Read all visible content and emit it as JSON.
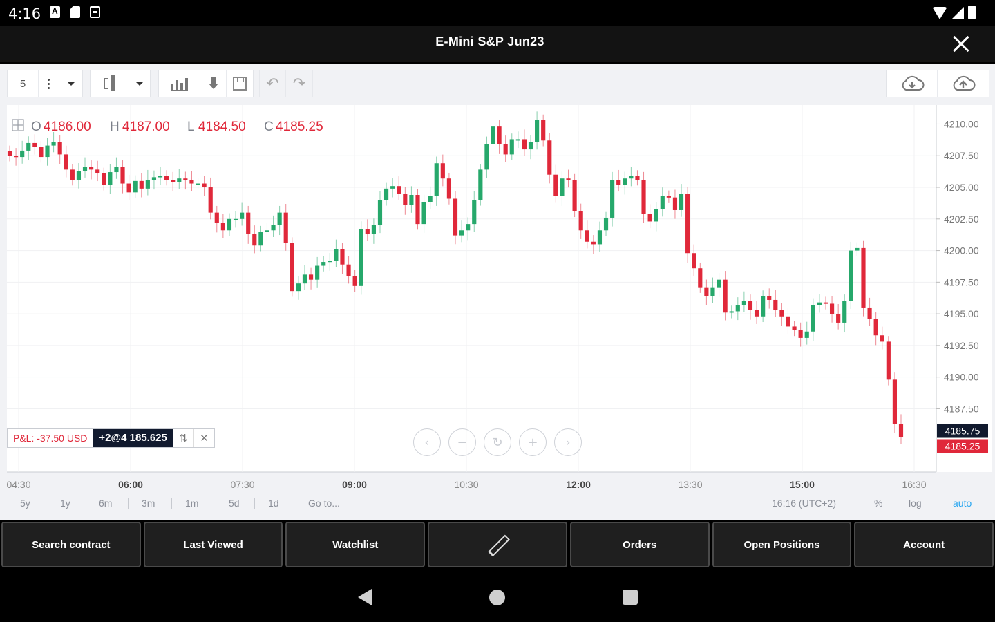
{
  "status_bar": {
    "time": "4:16"
  },
  "header": {
    "title": "E-Mini S&P Jun23"
  },
  "toolbar": {
    "interval": "5"
  },
  "ohlc": {
    "open_label": "O",
    "open": "4186.00",
    "high_label": "H",
    "high": "4187.00",
    "low_label": "L",
    "low": "4184.50",
    "close_label": "C",
    "close": "4185.25"
  },
  "position": {
    "pnl": "P&L: -37.50 USD",
    "qty": "+2@4 185.625"
  },
  "range_bar": {
    "items": [
      "5y",
      "1y",
      "6m",
      "3m",
      "1m",
      "5d",
      "1d",
      "Go to..."
    ],
    "timezone": "16:16 (UTC+2)",
    "percent": "%",
    "log": "log",
    "auto": "auto"
  },
  "bottom_nav": {
    "search": "Search contract",
    "last_viewed": "Last Viewed",
    "watchlist": "Watchlist",
    "orders": "Orders",
    "open_positions": "Open Positions",
    "account": "Account"
  },
  "colors": {
    "up": "#26a86b",
    "down": "#e0283a",
    "accent": "#2aa7f0"
  },
  "chart_data": {
    "type": "candlestick",
    "x_labels": [
      "04:30",
      "06:00",
      "07:30",
      "09:00",
      "10:30",
      "12:00",
      "13:30",
      "15:00",
      "16:30"
    ],
    "y_ticks": [
      "4210.00",
      "4207.50",
      "4205.00",
      "4202.50",
      "4200.00",
      "4197.50",
      "4195.00",
      "4192.50",
      "4190.00",
      "4187.50"
    ],
    "ylim": [
      4182.5,
      4211.5
    ],
    "position_price": "4185.75",
    "last_price": "4185.25",
    "grid": true,
    "closes": [
      4207.5,
      4207.4,
      4207.9,
      4208.5,
      4208.2,
      4207.4,
      4208.3,
      4208.6,
      4207.6,
      4206.4,
      4205.6,
      4206.3,
      4206.6,
      4206.4,
      4206.1,
      4205.2,
      4206.2,
      4206.6,
      4205.3,
      4204.6,
      4205.5,
      4204.9,
      4205.6,
      4205.8,
      4205.9,
      4205.6,
      4205.4,
      4205.7,
      4205.6,
      4205.3,
      4205.3,
      4205.0,
      4203.0,
      4202.2,
      4201.6,
      4202.5,
      4202.5,
      4203.0,
      4201.3,
      4200.4,
      4201.5,
      4201.6,
      4202.0,
      4203.0,
      4200.6,
      4196.8,
      4197.4,
      4198.1,
      4197.7,
      4198.8,
      4199.1,
      4199.2,
      4200.1,
      4198.9,
      4198.0,
      4197.2,
      4201.7,
      4201.3,
      4202.0,
      4204.0,
      4204.9,
      4205.1,
      4204.5,
      4203.6,
      4204.4,
      4202.1,
      4203.8,
      4204.3,
      4206.9,
      4205.7,
      4204.1,
      4201.2,
      4201.6,
      4202.1,
      4204.0,
      4206.4,
      4208.4,
      4209.8,
      4208.4,
      4207.6,
      4208.8,
      4208.8,
      4208.0,
      4208.6,
      4210.3,
      4208.7,
      4206.0,
      4204.3,
      4205.7,
      4205.6,
      4203.1,
      4201.6,
      4200.7,
      4200.5,
      4201.6,
      4202.6,
      4205.6,
      4205.2,
      4205.7,
      4205.9,
      4205.6,
      4202.9,
      4202.3,
      4203.3,
      4204.3,
      4204.2,
      4203.2,
      4204.5,
      4199.8,
      4198.6,
      4197.1,
      4196.4,
      4197.1,
      4197.7,
      4195.1,
      4195.2,
      4195.7,
      4196.0,
      4195.3,
      4194.8,
      4196.4,
      4196.1,
      4195.3,
      4194.8,
      4194.0,
      4193.7,
      4193.1,
      4193.6,
      4195.7,
      4195.9,
      4195.8,
      4195.0,
      4194.3,
      4196.0,
      4200.0,
      4200.2,
      4195.5,
      4194.6,
      4193.3,
      4192.8,
      4189.8,
      4186.3,
      4185.25
    ]
  }
}
